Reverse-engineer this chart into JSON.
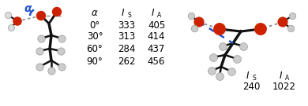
{
  "left_table": {
    "alpha_col": [
      "0°",
      "30°",
      "60°",
      "90°"
    ],
    "IS_col": [
      "333",
      "313",
      "284",
      "262"
    ],
    "IA_col": [
      "405",
      "414",
      "437",
      "456"
    ]
  },
  "right_table": {
    "IS_val": "240",
    "IA_val": "1022"
  },
  "bg_color": "#ffffff",
  "text_color": "#000000",
  "blue_color": "#2255cc",
  "gray_color": "#aaaaaa",
  "red_color": "#cc2200",
  "dark_gray": "#555555",
  "h_color": "#cccccc",
  "black": "#111111",
  "header_fontsize": 8.5,
  "data_fontsize": 8.5,
  "subscript_size": 5.5
}
